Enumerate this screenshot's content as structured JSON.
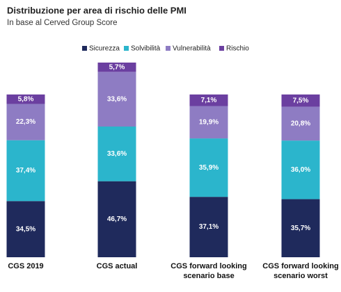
{
  "chart_data": {
    "type": "stacked_bar",
    "title": "Distribuzione per area di rischio delle PMI",
    "subtitle": "In base al Cerved Group Score",
    "categories": [
      [
        "CGS 2019"
      ],
      [
        "CGS actual"
      ],
      [
        "CGS forward looking",
        "scenario base"
      ],
      [
        "CGS forward looking",
        "scenario worst"
      ]
    ],
    "series": [
      {
        "name": "Sicurezza",
        "color": "#1f2a5c",
        "values": [
          34.5,
          46.7,
          37.1,
          35.7
        ],
        "value_labels": [
          "34,5%",
          "46,7%",
          "37,1%",
          "35,7%"
        ]
      },
      {
        "name": "Solvibilità",
        "color": "#2bb5cc",
        "values": [
          37.4,
          33.6,
          35.9,
          36.0
        ],
        "value_labels": [
          "37,4%",
          "33,6%",
          "35,9%",
          "36,0%"
        ]
      },
      {
        "name": "Vulnerabilità",
        "color": "#8e7cc3",
        "values": [
          22.3,
          33.6,
          19.9,
          20.8
        ],
        "value_labels": [
          "22,3%",
          "33,6%",
          "19,9%",
          "20,8%"
        ]
      },
      {
        "name": "Rischio",
        "color": "#6b3fa0",
        "values": [
          5.8,
          5.7,
          7.1,
          7.5
        ],
        "value_labels": [
          "5,8%",
          "5,7%",
          "7,1%",
          "7,5%"
        ]
      }
    ]
  }
}
